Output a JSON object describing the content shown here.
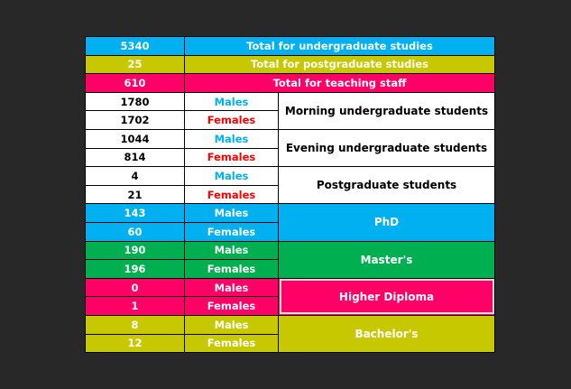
{
  "summary": [
    {
      "value": "5340",
      "label": "Total for undergraduate studies",
      "color": "#00b0f0"
    },
    {
      "value": "25",
      "label": "Total for postgraduate studies",
      "color": "#c8c800"
    },
    {
      "value": "610",
      "label": "Total for teaching staff",
      "color": "#ff0066"
    }
  ],
  "groups": [
    {
      "category": "Morning  undergraduate students",
      "color": "#ffffff",
      "males": "1780",
      "males_label": "Males",
      "females": "1702",
      "females_label": "Females"
    },
    {
      "category": "Evening undergraduate students",
      "color": "#ffffff",
      "males": "1044",
      "males_label": "Males",
      "females": "814",
      "females_label": "Females"
    },
    {
      "category": "Postgraduate students",
      "color": "#ffffff",
      "males": "4",
      "males_label": "Males",
      "females": "21",
      "females_label": "Females"
    },
    {
      "category": "PhD",
      "color": "#00b0f0",
      "males": "143",
      "males_label": "Males",
      "females": "60",
      "females_label": "Females"
    },
    {
      "category": "Master's",
      "color": "#00b050",
      "males": "190",
      "males_label": "Males",
      "females": "196",
      "females_label": "Females"
    },
    {
      "category": "Higher Diploma",
      "color": "#ff0066",
      "males": "0",
      "males_label": "Males",
      "females": "1",
      "females_label": "Females"
    },
    {
      "category": "Bachelor's",
      "color": "#c8c800",
      "males": "8",
      "males_label": "Males",
      "females": "12",
      "females_label": "Females"
    }
  ]
}
